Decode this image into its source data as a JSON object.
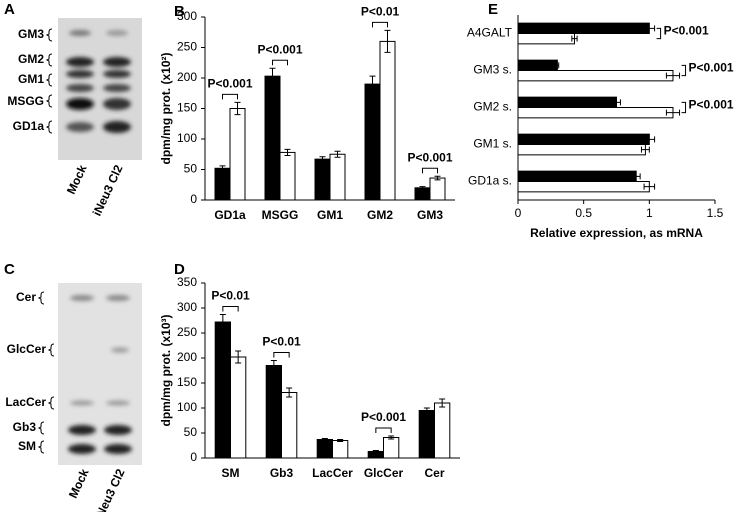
{
  "gels": [
    {
      "panel": "A",
      "bands": [
        "GM3",
        "GM2",
        "GM1",
        "MSGG",
        "GD1a"
      ],
      "lanes": [
        "Mock",
        "iNeu3 Cl2"
      ]
    },
    {
      "panel": "C",
      "bands": [
        "Cer",
        "GlcCer",
        "LacCer",
        "Gb3",
        "SM"
      ],
      "lanes": [
        "Mock",
        "iNeu3 Cl2"
      ]
    }
  ],
  "chart_data": [
    {
      "type": "bar",
      "panel": "B",
      "ylabel": "dpm/mg prot. (x10²)",
      "categories": [
        "GD1a",
        "MSGG",
        "GM1",
        "GM2",
        "GM3"
      ],
      "series": [
        {
          "color": "#000000",
          "values": [
            52,
            203,
            67,
            190,
            20
          ],
          "errors": [
            4,
            13,
            4,
            13,
            2
          ]
        },
        {
          "color": "#ffffff",
          "values": [
            150,
            78,
            75,
            260,
            36
          ],
          "errors": [
            10,
            5,
            5,
            18,
            3
          ]
        }
      ],
      "p_values": [
        "P<0.001",
        "P<0.001",
        null,
        "P<0.01",
        "P<0.001"
      ],
      "ylim": [
        0,
        300
      ],
      "yticks": [
        0,
        50,
        100,
        150,
        200,
        250,
        300
      ]
    },
    {
      "type": "bar",
      "panel": "D",
      "ylabel": "dpm/mg prot. (x10³)",
      "categories": [
        "SM",
        "Gb3",
        "LacCer",
        "GlcCer",
        "Cer"
      ],
      "series": [
        {
          "color": "#000000",
          "values": [
            272,
            185,
            37,
            13,
            95
          ],
          "errors": [
            15,
            10,
            2,
            2,
            5
          ]
        },
        {
          "color": "#ffffff",
          "values": [
            202,
            131,
            35,
            41,
            110
          ],
          "errors": [
            12,
            9,
            2,
            3,
            8
          ]
        }
      ],
      "p_values": [
        "P<0.01",
        "P<0.01",
        null,
        "P<0.001",
        null
      ],
      "ylim": [
        0,
        350
      ],
      "yticks": [
        0,
        50,
        100,
        150,
        200,
        250,
        300,
        350
      ]
    },
    {
      "type": "hbar",
      "panel": "E",
      "xlabel": "Relative expression, as mRNA",
      "categories": [
        "A4GALT",
        "GM3 s.",
        "GM2 s.",
        "GM1 s.",
        "GD1a s."
      ],
      "series": [
        {
          "color": "#000000",
          "values": [
            1,
            0.3,
            0.75,
            1,
            0.9
          ],
          "errors": [
            0.04,
            0.01,
            0.03,
            0.04,
            0.03
          ]
        },
        {
          "color": "#ffffff",
          "values": [
            0.43,
            1.18,
            1.18,
            0.97,
            1.0
          ],
          "errors": [
            0.02,
            0.05,
            0.05,
            0.03,
            0.04
          ]
        }
      ],
      "p_values": [
        "P<0.001",
        "P<0.001",
        "P<0.001",
        null,
        null
      ],
      "xlim": [
        0,
        1.5
      ],
      "xticks": [
        0,
        0.5,
        1,
        1.5
      ]
    }
  ]
}
